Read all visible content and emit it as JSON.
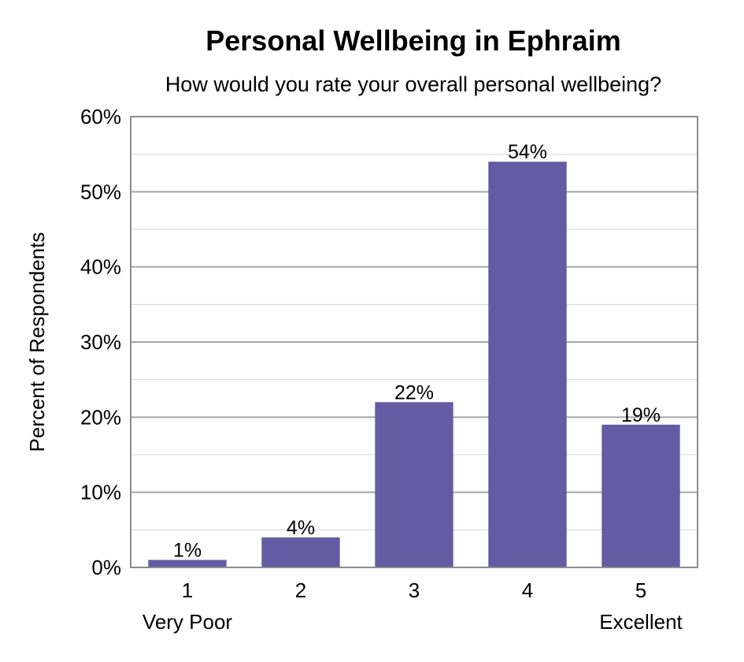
{
  "chart_data": {
    "type": "bar",
    "title": "Personal Wellbeing in Ephraim",
    "subtitle": "How would you rate your overall personal wellbeing?",
    "ylabel": "Percent of Respondents",
    "xlabel": "",
    "categories": [
      "1",
      "2",
      "3",
      "4",
      "5"
    ],
    "category_sublabels": [
      "Very Poor",
      "",
      "",
      "",
      "Excellent"
    ],
    "values": [
      1,
      4,
      22,
      54,
      19
    ],
    "data_labels": [
      "1%",
      "4%",
      "22%",
      "54%",
      "19%"
    ],
    "ylim": [
      0,
      60
    ],
    "yticks": [
      0,
      10,
      20,
      30,
      40,
      50,
      60
    ],
    "ytick_labels": [
      "0%",
      "10%",
      "20%",
      "30%",
      "40%",
      "50%",
      "60%"
    ],
    "grid": true,
    "legend": "none",
    "bar_color": "#635ba3"
  }
}
